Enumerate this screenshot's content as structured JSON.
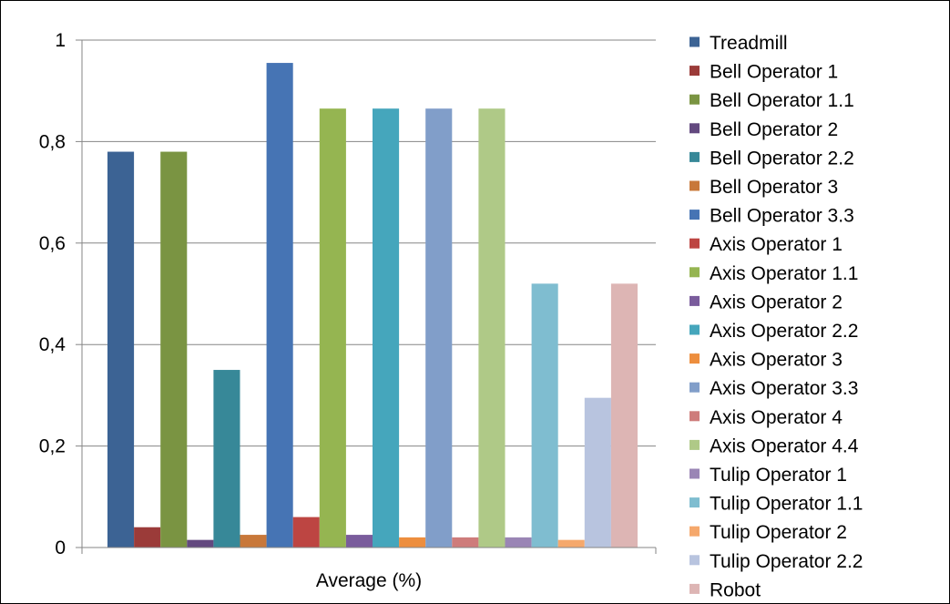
{
  "chart_data": {
    "type": "bar",
    "categories": [
      "Average (%)"
    ],
    "xlabel": "",
    "ylabel": "",
    "ylim": [
      0,
      1
    ],
    "yticks": [
      {
        "value": 0,
        "label": "0"
      },
      {
        "value": 0.2,
        "label": "0,2"
      },
      {
        "value": 0.4,
        "label": "0,4"
      },
      {
        "value": 0.6,
        "label": "0,6"
      },
      {
        "value": 0.8,
        "label": "0,8"
      },
      {
        "value": 1,
        "label": "1"
      }
    ],
    "grid": true,
    "legend_position": "right",
    "series": [
      {
        "name": "Treadmill",
        "values": [
          0.78
        ],
        "color": "#3C6394"
      },
      {
        "name": "Bell Operator 1",
        "values": [
          0.04
        ],
        "color": "#9B3B39"
      },
      {
        "name": "Bell Operator 1.1",
        "values": [
          0.78
        ],
        "color": "#7A9442"
      },
      {
        "name": "Bell Operator 2",
        "values": [
          0.015
        ],
        "color": "#63497F"
      },
      {
        "name": "Bell Operator 2.2",
        "values": [
          0.35
        ],
        "color": "#378898"
      },
      {
        "name": "Bell Operator 3",
        "values": [
          0.025
        ],
        "color": "#C8783A"
      },
      {
        "name": "Bell Operator 3.3",
        "values": [
          0.955
        ],
        "color": "#4674B4"
      },
      {
        "name": "Axis Operator 1",
        "values": [
          0.06
        ],
        "color": "#BD4542"
      },
      {
        "name": "Axis Operator 1.1",
        "values": [
          0.865
        ],
        "color": "#95B551"
      },
      {
        "name": "Axis Operator 2",
        "values": [
          0.025
        ],
        "color": "#7A5C9C"
      },
      {
        "name": "Axis Operator 2.2",
        "values": [
          0.865
        ],
        "color": "#45A6BC"
      },
      {
        "name": "Axis Operator 3",
        "values": [
          0.02
        ],
        "color": "#ED8E3E"
      },
      {
        "name": "Axis Operator 3.3",
        "values": [
          0.865
        ],
        "color": "#819EC9"
      },
      {
        "name": "Axis Operator 4",
        "values": [
          0.02
        ],
        "color": "#CE7C7B"
      },
      {
        "name": "Axis Operator 4.4",
        "values": [
          0.865
        ],
        "color": "#AFC987"
      },
      {
        "name": "Tulip Operator 1",
        "values": [
          0.02
        ],
        "color": "#9A85B5"
      },
      {
        "name": "Tulip Operator 1.1",
        "values": [
          0.52
        ],
        "color": "#7FBDD0"
      },
      {
        "name": "Tulip Operator 2",
        "values": [
          0.015
        ],
        "color": "#F5A86C"
      },
      {
        "name": "Tulip Operator 2.2",
        "values": [
          0.295
        ],
        "color": "#B8C4DF"
      },
      {
        "name": "Robot",
        "values": [
          0.52
        ],
        "color": "#DDB5B4"
      }
    ]
  }
}
